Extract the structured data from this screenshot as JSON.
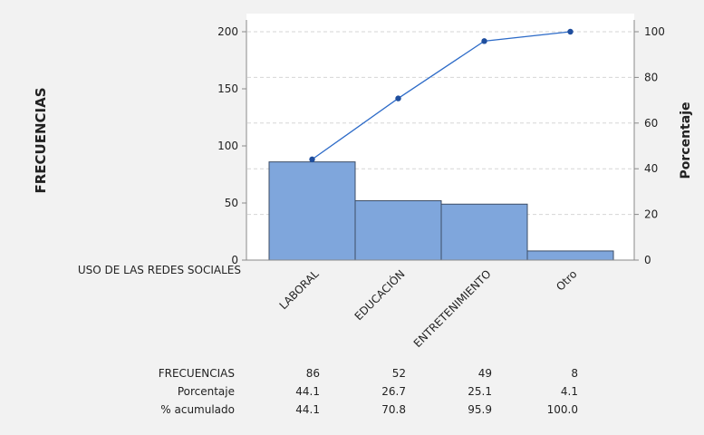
{
  "chart_data": {
    "type": "bar",
    "title": "",
    "xlabel": "USO DE  LAS REDES SOCIALES",
    "ylabel": "FRECUENCIAS",
    "y2label": "Porcentaje",
    "ylim": [
      0,
      200
    ],
    "y2lim": [
      0,
      100
    ],
    "y_ticks": [
      "0",
      "50",
      "100",
      "150",
      "200"
    ],
    "y2_ticks": [
      "0",
      "20",
      "40",
      "60",
      "80",
      "100"
    ],
    "categories": [
      "LABORAL",
      "EDUCACIÓN",
      "ENTRETENIMIENTO",
      "Otro"
    ],
    "series": [
      {
        "values": [
          86,
          52,
          49,
          8
        ],
        "color": "#7fa6dc"
      },
      {
        "values": [
          44.1,
          70.8,
          95.9,
          100.0
        ],
        "color": "#2d6bc8"
      }
    ],
    "grid": true,
    "table": {
      "rows": [
        {
          "label": "FRECUENCIAS",
          "values": [
            "86",
            "52",
            "49",
            "8"
          ]
        },
        {
          "label": "Porcentaje",
          "values": [
            "44.1",
            "26.7",
            "25.1",
            "4.1"
          ]
        },
        {
          "label": "% acumulado",
          "values": [
            "44.1",
            "70.8",
            "95.9",
            "100.0"
          ]
        }
      ]
    }
  }
}
